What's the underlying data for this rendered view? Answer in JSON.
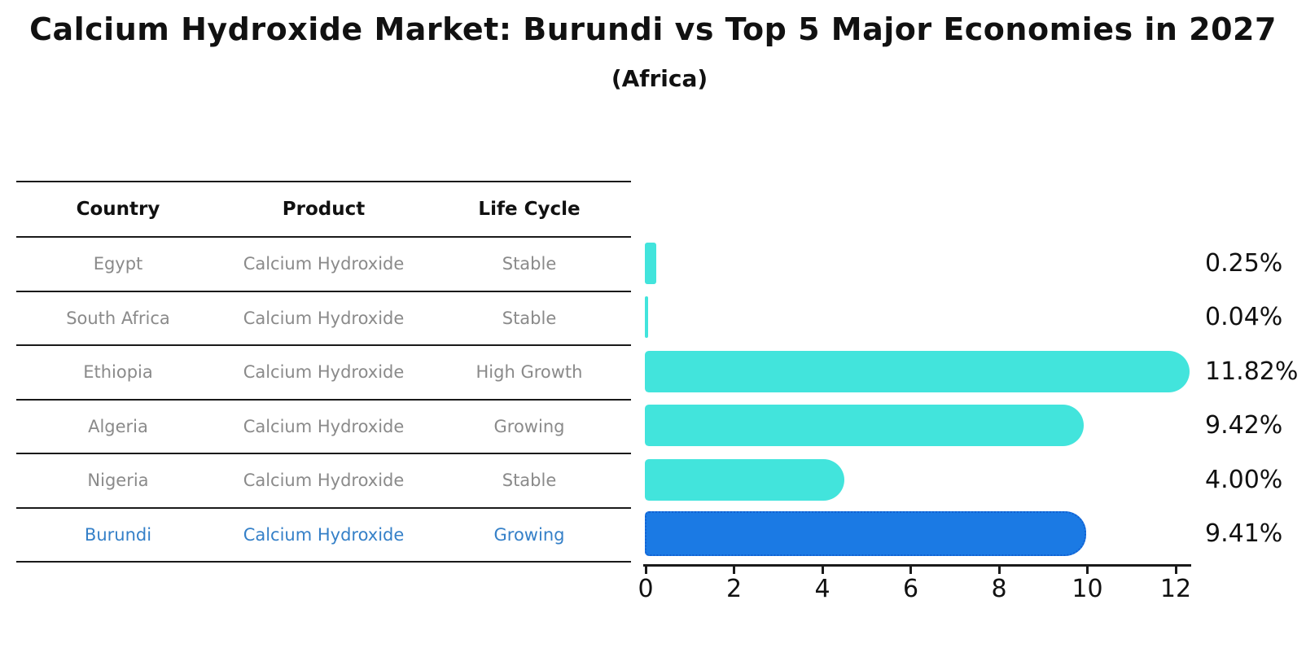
{
  "title": "Calcium Hydroxide Market: Burundi vs Top 5 Major Economies in 2027",
  "subtitle": "(Africa)",
  "table": {
    "headers": [
      "Country",
      "Product",
      "Life Cycle"
    ],
    "rows": [
      {
        "country": "Egypt",
        "product": "Calcium Hydroxide",
        "life_cycle": "Stable",
        "highlight": false
      },
      {
        "country": "South Africa",
        "product": "Calcium Hydroxide",
        "life_cycle": "Stable",
        "highlight": false
      },
      {
        "country": "Ethiopia",
        "product": "Calcium Hydroxide",
        "life_cycle": "High Growth",
        "highlight": false
      },
      {
        "country": "Algeria",
        "product": "Calcium Hydroxide",
        "life_cycle": "Growing",
        "highlight": false
      },
      {
        "country": "Nigeria",
        "product": "Calcium Hydroxide",
        "life_cycle": "Stable",
        "highlight": false
      },
      {
        "country": "Burundi",
        "product": "Calcium Hydroxide",
        "life_cycle": "Growing",
        "highlight": true
      }
    ]
  },
  "chart_data": {
    "type": "bar",
    "orientation": "horizontal",
    "categories": [
      "Egypt",
      "South Africa",
      "Ethiopia",
      "Algeria",
      "Nigeria",
      "Burundi"
    ],
    "values": [
      0.25,
      0.04,
      11.82,
      9.42,
      4.0,
      9.41
    ],
    "value_labels": [
      "0.25%",
      "0.04%",
      "11.82%",
      "9.42%",
      "4.00%",
      "9.41%"
    ],
    "highlight_index": 5,
    "xlim": [
      0,
      12
    ],
    "x_ticks": [
      "0",
      "2",
      "4",
      "6",
      "8",
      "10",
      "12"
    ],
    "grid": false,
    "legend": false,
    "colors": {
      "bar": "#42E4DC",
      "highlight_bar": "#1B7AE4",
      "highlight_bar_border": "#1160D2",
      "highlight_text": "#3580C8",
      "table_text": "#8A8A8A",
      "header_text": "#111111",
      "axis": "#1A1A1A"
    }
  }
}
